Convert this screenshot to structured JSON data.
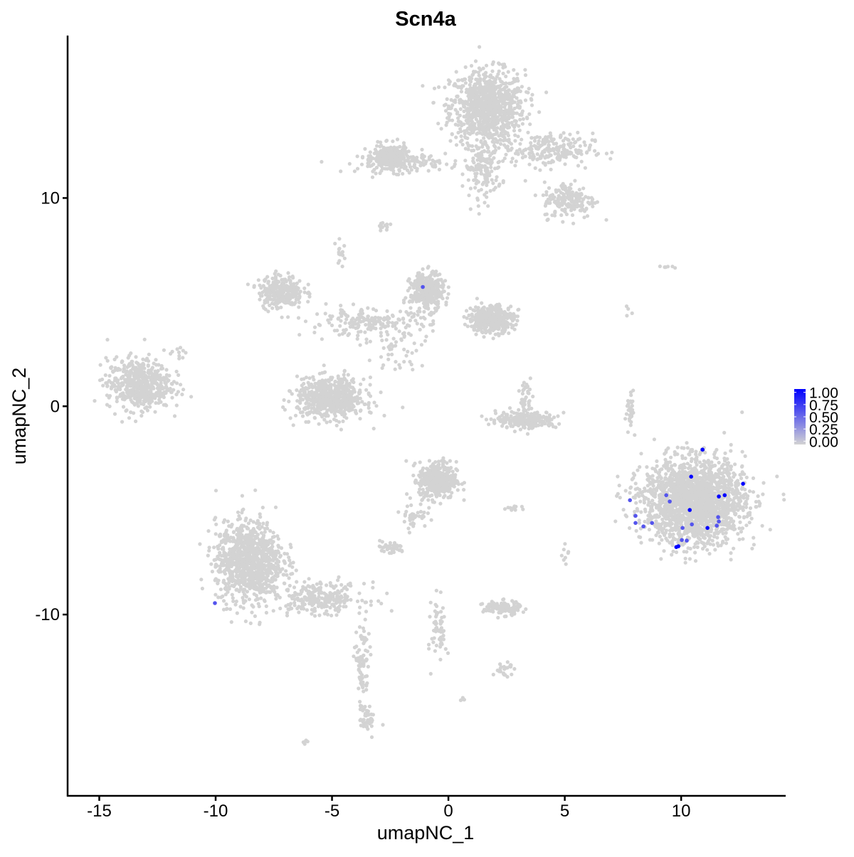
{
  "chart_data": {
    "type": "scatter",
    "title": "Scn4a",
    "xlabel": "umapNC_1",
    "ylabel": "umapNC_2",
    "xlim": [
      -16.36,
      14.46
    ],
    "ylim": [
      -18.67,
      17.8
    ],
    "x_ticks": [
      -15,
      -10,
      -5,
      0,
      5,
      10
    ],
    "y_ticks": [
      -10,
      0,
      10
    ],
    "x_tick_labels": [
      "-15",
      "-10",
      "-5",
      "0",
      "5",
      "10"
    ],
    "y_tick_labels": [
      "-10",
      "0",
      "10"
    ],
    "grid": false,
    "colors": {
      "low": "#D3D3D3",
      "high": "#0000FF"
    },
    "legend": {
      "placement": "right",
      "type": "colorbar",
      "range": [
        0,
        1
      ],
      "ticks": [
        1.0,
        0.75,
        0.5,
        0.25,
        0.0
      ],
      "tick_labels": [
        "1.00",
        "0.75",
        "0.50",
        "0.25",
        "0.00"
      ]
    },
    "background_value": 0,
    "background_clusters": [
      {
        "cx": 1.68,
        "cy": 14.37,
        "sx": 1.0,
        "sy": 1.1,
        "n": 900
      },
      {
        "cx": 1.5,
        "cy": 11.5,
        "sx": 0.5,
        "sy": 0.9,
        "n": 160
      },
      {
        "cx": -2.14,
        "cy": 11.7,
        "sx": 1.1,
        "sy": 0.3,
        "n": 180
      },
      {
        "cx": -2.5,
        "cy": 12.0,
        "sx": 0.45,
        "sy": 0.35,
        "n": 200
      },
      {
        "cx": 4.28,
        "cy": 12.3,
        "sx": 1.2,
        "sy": 0.5,
        "n": 220
      },
      {
        "cx": 5.2,
        "cy": 9.9,
        "sx": 0.7,
        "sy": 0.55,
        "n": 180
      },
      {
        "cx": -2.75,
        "cy": 8.7,
        "sx": 0.2,
        "sy": 0.15,
        "n": 15
      },
      {
        "cx": -13.3,
        "cy": 1.06,
        "sx": 0.85,
        "sy": 0.75,
        "n": 550
      },
      {
        "cx": -11.5,
        "cy": 2.6,
        "sx": 0.25,
        "sy": 0.2,
        "n": 10
      },
      {
        "cx": -7.2,
        "cy": 5.5,
        "sx": 0.6,
        "sy": 0.5,
        "n": 260
      },
      {
        "cx": -5.05,
        "cy": 0.38,
        "sx": 0.9,
        "sy": 0.6,
        "n": 650
      },
      {
        "cx": -4.6,
        "cy": 7.3,
        "sx": 0.15,
        "sy": 0.4,
        "n": 15
      },
      {
        "cx": -0.92,
        "cy": 5.5,
        "sx": 0.45,
        "sy": 0.55,
        "n": 350
      },
      {
        "cx": 1.83,
        "cy": 4.2,
        "sx": 0.6,
        "sy": 0.4,
        "n": 420
      },
      {
        "cx": -3.36,
        "cy": 4.0,
        "sx": 1.6,
        "sy": 0.4,
        "n": 200
      },
      {
        "cx": -2.0,
        "cy": 2.5,
        "sx": 1.0,
        "sy": 0.8,
        "n": 40
      },
      {
        "cx": 3.36,
        "cy": -0.65,
        "sx": 0.8,
        "sy": 0.25,
        "n": 250
      },
      {
        "cx": 3.3,
        "cy": 0.5,
        "sx": 0.15,
        "sy": 0.5,
        "n": 35
      },
      {
        "cx": 10.55,
        "cy": -4.57,
        "sx": 1.35,
        "sy": 1.25,
        "n": 2000
      },
      {
        "cx": 7.8,
        "cy": -0.3,
        "sx": 0.12,
        "sy": 0.6,
        "n": 30
      },
      {
        "cx": -0.46,
        "cy": -3.55,
        "sx": 0.5,
        "sy": 0.55,
        "n": 420
      },
      {
        "cx": -1.5,
        "cy": -5.2,
        "sx": 0.35,
        "sy": 0.4,
        "n": 40
      },
      {
        "cx": -2.5,
        "cy": -6.8,
        "sx": 0.4,
        "sy": 0.2,
        "n": 45
      },
      {
        "cx": -8.56,
        "cy": -7.47,
        "sx": 0.9,
        "sy": 1.2,
        "n": 1000
      },
      {
        "cx": -5.5,
        "cy": -9.2,
        "sx": 1.2,
        "sy": 0.45,
        "n": 250
      },
      {
        "cx": -3.7,
        "cy": -12.5,
        "sx": 0.2,
        "sy": 1.4,
        "n": 80
      },
      {
        "cx": -3.5,
        "cy": -15.0,
        "sx": 0.2,
        "sy": 0.4,
        "n": 40
      },
      {
        "cx": -0.4,
        "cy": -10.7,
        "sx": 0.2,
        "sy": 1.0,
        "n": 60
      },
      {
        "cx": 2.3,
        "cy": -9.7,
        "sx": 0.5,
        "sy": 0.2,
        "n": 130
      },
      {
        "cx": 2.4,
        "cy": -12.6,
        "sx": 0.3,
        "sy": 0.2,
        "n": 25
      },
      {
        "cx": -6.1,
        "cy": -16.1,
        "sx": 0.1,
        "sy": 0.08,
        "n": 6
      },
      {
        "cx": 0.6,
        "cy": -14.1,
        "sx": 0.08,
        "sy": 0.08,
        "n": 4
      },
      {
        "cx": 2.75,
        "cy": -4.9,
        "sx": 0.3,
        "sy": 0.08,
        "n": 10
      },
      {
        "cx": 5.05,
        "cy": -7.2,
        "sx": 0.1,
        "sy": 0.3,
        "n": 8
      },
      {
        "cx": 9.5,
        "cy": 6.7,
        "sx": 0.25,
        "sy": 0.06,
        "n": 6
      },
      {
        "cx": 7.7,
        "cy": 4.6,
        "sx": 0.1,
        "sy": 0.25,
        "n": 4
      }
    ],
    "expressing_cells": [
      {
        "x": 10.92,
        "y": -2.08,
        "value": 1.0
      },
      {
        "x": 10.43,
        "y": -3.38,
        "value": 1.0
      },
      {
        "x": 12.66,
        "y": -3.72,
        "value": 1.0
      },
      {
        "x": 11.62,
        "y": -4.33,
        "value": 1.0
      },
      {
        "x": 11.87,
        "y": -4.27,
        "value": 1.0
      },
      {
        "x": 10.37,
        "y": -4.98,
        "value": 1.0
      },
      {
        "x": 11.13,
        "y": -5.84,
        "value": 1.0
      },
      {
        "x": 9.79,
        "y": -6.76,
        "value": 1.0
      },
      {
        "x": 9.88,
        "y": -6.72,
        "value": 1.0
      },
      {
        "x": 7.8,
        "y": -4.51,
        "value": 0.6
      },
      {
        "x": 9.36,
        "y": -4.27,
        "value": 0.6
      },
      {
        "x": 9.51,
        "y": -4.57,
        "value": 0.6
      },
      {
        "x": 8.04,
        "y": -5.26,
        "value": 0.6
      },
      {
        "x": 8.04,
        "y": -5.6,
        "value": 0.6
      },
      {
        "x": 8.38,
        "y": -5.77,
        "value": 0.6
      },
      {
        "x": 8.75,
        "y": -5.6,
        "value": 0.6
      },
      {
        "x": 10.06,
        "y": -5.84,
        "value": 0.6
      },
      {
        "x": 10.46,
        "y": -5.67,
        "value": 0.6
      },
      {
        "x": 11.59,
        "y": -5.32,
        "value": 0.6
      },
      {
        "x": 11.62,
        "y": -5.53,
        "value": 0.6
      },
      {
        "x": 11.53,
        "y": -5.73,
        "value": 0.6
      },
      {
        "x": 10.03,
        "y": -6.42,
        "value": 0.6
      },
      {
        "x": 10.24,
        "y": -6.45,
        "value": 0.6
      },
      {
        "x": -1.1,
        "y": 5.73,
        "value": 0.6
      },
      {
        "x": -10.03,
        "y": -9.45,
        "value": 0.6
      }
    ]
  }
}
